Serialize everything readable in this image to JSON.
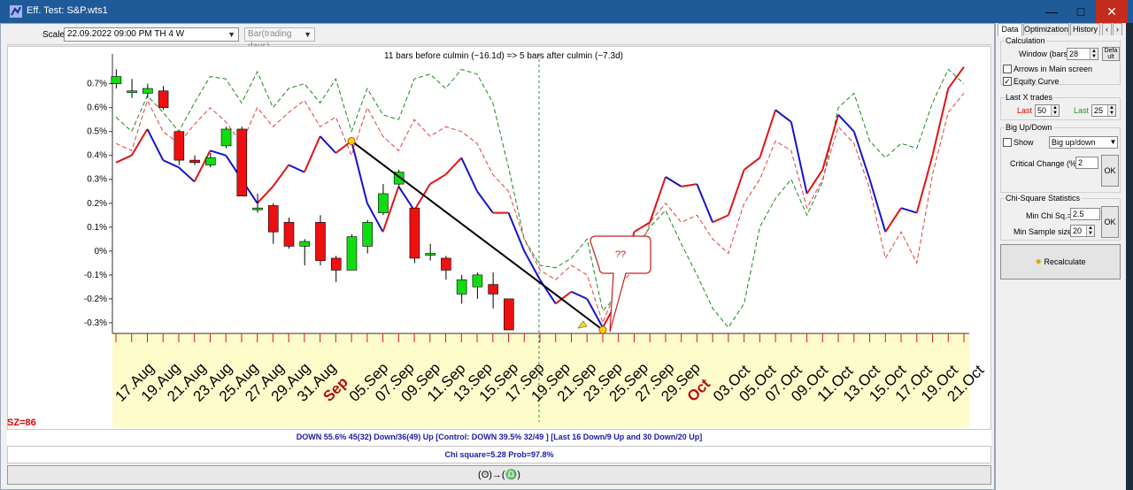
{
  "window": {
    "title": "Eff. Test: S&P.wts1"
  },
  "toolbar": {
    "scale_label": "Scale",
    "scale_value": "22.09.2022  09:00 PM TH   4 W",
    "bar_mode": "Bar(trading days)"
  },
  "chart_data": {
    "type": "line",
    "subtitle": "11 bars before culmin (~16.1d) => 5 bars after culmin (~7.3d)",
    "y_ticks": [
      "0.7%",
      "0.6%",
      "0.5%",
      "0.4%",
      "0.3%",
      "0.2%",
      "0.1%",
      "0%",
      "-0.1%",
      "-0.2%",
      "-0.3%"
    ],
    "ylim": [
      -0.33,
      0.78
    ],
    "x_labels": [
      "17.Aug",
      "19.Aug",
      "21.Aug",
      "23.Aug",
      "25.Aug",
      "27.Aug",
      "29.Aug",
      "31.Aug",
      "Sep",
      "05.Sep",
      "07.Sep",
      "09.Sep",
      "11.Sep",
      "13.Sep",
      "15.Sep",
      "17.Sep",
      "19.Sep",
      "21.Sep",
      "23.Sep",
      "25.Sep",
      "27.Sep",
      "29.Sep",
      "Oct",
      "03.Oct",
      "05.Oct",
      "07.Oct",
      "09.Oct",
      "11.Oct",
      "13.Oct",
      "15.Oct",
      "17.Oct",
      "19.Oct",
      "21.Oct"
    ],
    "month_labels": [
      "Sep",
      "Oct"
    ],
    "annotation": "??",
    "main_line": [
      0.37,
      0.4,
      0.51,
      0.38,
      0.35,
      0.29,
      0.42,
      0.4,
      0.3,
      0.2,
      0.27,
      0.36,
      0.33,
      0.48,
      0.41,
      0.46,
      0.2,
      0.08,
      0.27,
      0.17,
      0.28,
      0.32,
      0.39,
      0.25,
      0.16,
      0.16,
      0.0,
      -0.12,
      -0.22,
      -0.17,
      -0.2,
      -0.32,
      -0.2,
      0.08,
      0.12,
      0.31,
      0.27,
      0.28,
      0.12,
      0.15,
      0.34,
      0.39,
      0.59,
      0.54,
      0.24,
      0.34,
      0.57,
      0.5,
      0.3,
      0.08,
      0.18,
      0.16,
      0.4,
      0.68,
      0.77
    ],
    "main_split": 15,
    "green_dash": [
      0.56,
      0.5,
      0.65,
      0.58,
      0.5,
      0.62,
      0.73,
      0.72,
      0.62,
      0.75,
      0.6,
      0.68,
      0.7,
      0.62,
      0.72,
      0.5,
      0.68,
      0.57,
      0.55,
      0.72,
      0.74,
      0.68,
      0.76,
      0.74,
      0.62,
      0.35,
      0.05,
      -0.06,
      -0.07,
      -0.03,
      0.05,
      -0.25,
      -0.18,
      0.0,
      0.1,
      0.17,
      0.03,
      -0.1,
      -0.24,
      -0.32,
      -0.22,
      0.1,
      0.22,
      0.3,
      0.15,
      0.29,
      0.6,
      0.66,
      0.46,
      0.39,
      0.45,
      0.43,
      0.62,
      0.76,
      0.7
    ],
    "red_dash": [
      0.45,
      0.42,
      0.63,
      0.5,
      0.45,
      0.53,
      0.6,
      0.54,
      0.45,
      0.6,
      0.52,
      0.58,
      0.63,
      0.52,
      0.56,
      0.4,
      0.6,
      0.48,
      0.42,
      0.55,
      0.48,
      0.52,
      0.5,
      0.45,
      0.32,
      0.25,
      0.05,
      -0.08,
      -0.12,
      -0.06,
      -0.1,
      -0.3,
      -0.14,
      -0.08,
      0.12,
      0.2,
      0.12,
      0.15,
      0.05,
      -0.01,
      0.2,
      0.3,
      0.46,
      0.42,
      0.18,
      0.3,
      0.52,
      0.45,
      0.26,
      -0.03,
      0.08,
      -0.05,
      0.32,
      0.58,
      0.66
    ],
    "candles": [
      {
        "i": 0,
        "o": 0.7,
        "c": 0.73,
        "h": 0.76,
        "l": 0.68
      },
      {
        "i": 1,
        "o": 0.67,
        "c": 0.67,
        "h": 0.72,
        "l": 0.64
      },
      {
        "i": 2,
        "o": 0.66,
        "c": 0.68,
        "h": 0.7,
        "l": 0.64
      },
      {
        "i": 3,
        "o": 0.67,
        "c": 0.6,
        "h": 0.69,
        "l": 0.59
      },
      {
        "i": 4,
        "o": 0.5,
        "c": 0.38,
        "h": 0.5,
        "l": 0.36
      },
      {
        "i": 5,
        "o": 0.38,
        "c": 0.37,
        "h": 0.4,
        "l": 0.36
      },
      {
        "i": 6,
        "o": 0.36,
        "c": 0.39,
        "h": 0.41,
        "l": 0.35
      },
      {
        "i": 7,
        "o": 0.44,
        "c": 0.51,
        "h": 0.52,
        "l": 0.43
      },
      {
        "i": 8,
        "o": 0.51,
        "c": 0.23,
        "h": 0.52,
        "l": 0.23
      },
      {
        "i": 9,
        "o": 0.18,
        "c": 0.18,
        "h": 0.24,
        "l": 0.16
      },
      {
        "i": 10,
        "o": 0.19,
        "c": 0.08,
        "h": 0.2,
        "l": 0.03
      },
      {
        "i": 11,
        "o": 0.12,
        "c": 0.02,
        "h": 0.14,
        "l": 0.01
      },
      {
        "i": 12,
        "o": 0.02,
        "c": 0.04,
        "h": 0.05,
        "l": -0.06
      },
      {
        "i": 13,
        "o": 0.12,
        "c": -0.04,
        "h": 0.15,
        "l": -0.06
      },
      {
        "i": 14,
        "o": -0.03,
        "c": -0.08,
        "h": -0.02,
        "l": -0.13
      },
      {
        "i": 15,
        "o": -0.08,
        "c": 0.06,
        "h": 0.07,
        "l": -0.08
      },
      {
        "i": 16,
        "o": 0.02,
        "c": 0.12,
        "h": 0.13,
        "l": -0.01
      },
      {
        "i": 17,
        "o": 0.16,
        "c": 0.24,
        "h": 0.28,
        "l": 0.15
      },
      {
        "i": 18,
        "o": 0.28,
        "c": 0.33,
        "h": 0.34,
        "l": 0.27
      },
      {
        "i": 19,
        "o": 0.18,
        "c": -0.03,
        "h": 0.18,
        "l": -0.05
      },
      {
        "i": 20,
        "o": -0.01,
        "c": -0.01,
        "h": 0.03,
        "l": -0.04
      },
      {
        "i": 21,
        "o": -0.03,
        "c": -0.08,
        "h": -0.02,
        "l": -0.12
      },
      {
        "i": 22,
        "o": -0.18,
        "c": -0.12,
        "h": -0.1,
        "l": -0.22
      },
      {
        "i": 23,
        "o": -0.15,
        "c": -0.1,
        "h": -0.09,
        "l": -0.2
      },
      {
        "i": 24,
        "o": -0.14,
        "c": -0.18,
        "h": -0.09,
        "l": -0.24
      },
      {
        "i": 25,
        "o": -0.2,
        "c": -0.33,
        "h": -0.2,
        "l": -0.33
      }
    ]
  },
  "sz_label": "SZ=86",
  "status": {
    "line1": "DOWN 55.6%  45(32) Down/36(49) Up [Control: DOWN 39.5%  32/49 ] [Last 16 Down/9 Up and 30 Down/20 Up]",
    "line2": "Chi square=5.28  Prob=97.8%"
  },
  "bottom_button": "(ʘ)→(♎)",
  "panel": {
    "tabs": [
      "Data",
      "Optimization",
      "History"
    ],
    "calculation": {
      "title": "Calculation",
      "window_label": "Window (bars)",
      "window_value": "28",
      "default_btn": "Defa ult",
      "arrows_label": "Arrows in Main screen",
      "equity_label": "Equity Curve"
    },
    "last_x": {
      "title": "Last X trades",
      "last_red_label": "Last",
      "last_red_value": "50",
      "last_green_label": "Last",
      "last_green_value": "25"
    },
    "big": {
      "title": "Big Up/Down",
      "show_label": "Show",
      "mode_value": "Big up/down",
      "critical_label": "Critical Change (%)",
      "critical_value": "2",
      "ok": "OK"
    },
    "chi": {
      "title": "Chi-Square Statistics",
      "min_chi_label": "Min Chi Sq.=",
      "min_chi_value": "2.5",
      "min_sample_label": "Min Sample size=",
      "min_sample_value": "20",
      "ok": "OK"
    },
    "recalc": "Recalculate"
  },
  "colors": {
    "title_bar": "#1f5a99",
    "up": "#10dd10",
    "down": "#ee1010",
    "main_blue": "#1414cc",
    "main_red": "#e01414",
    "axis_bg": "#fffccc"
  }
}
